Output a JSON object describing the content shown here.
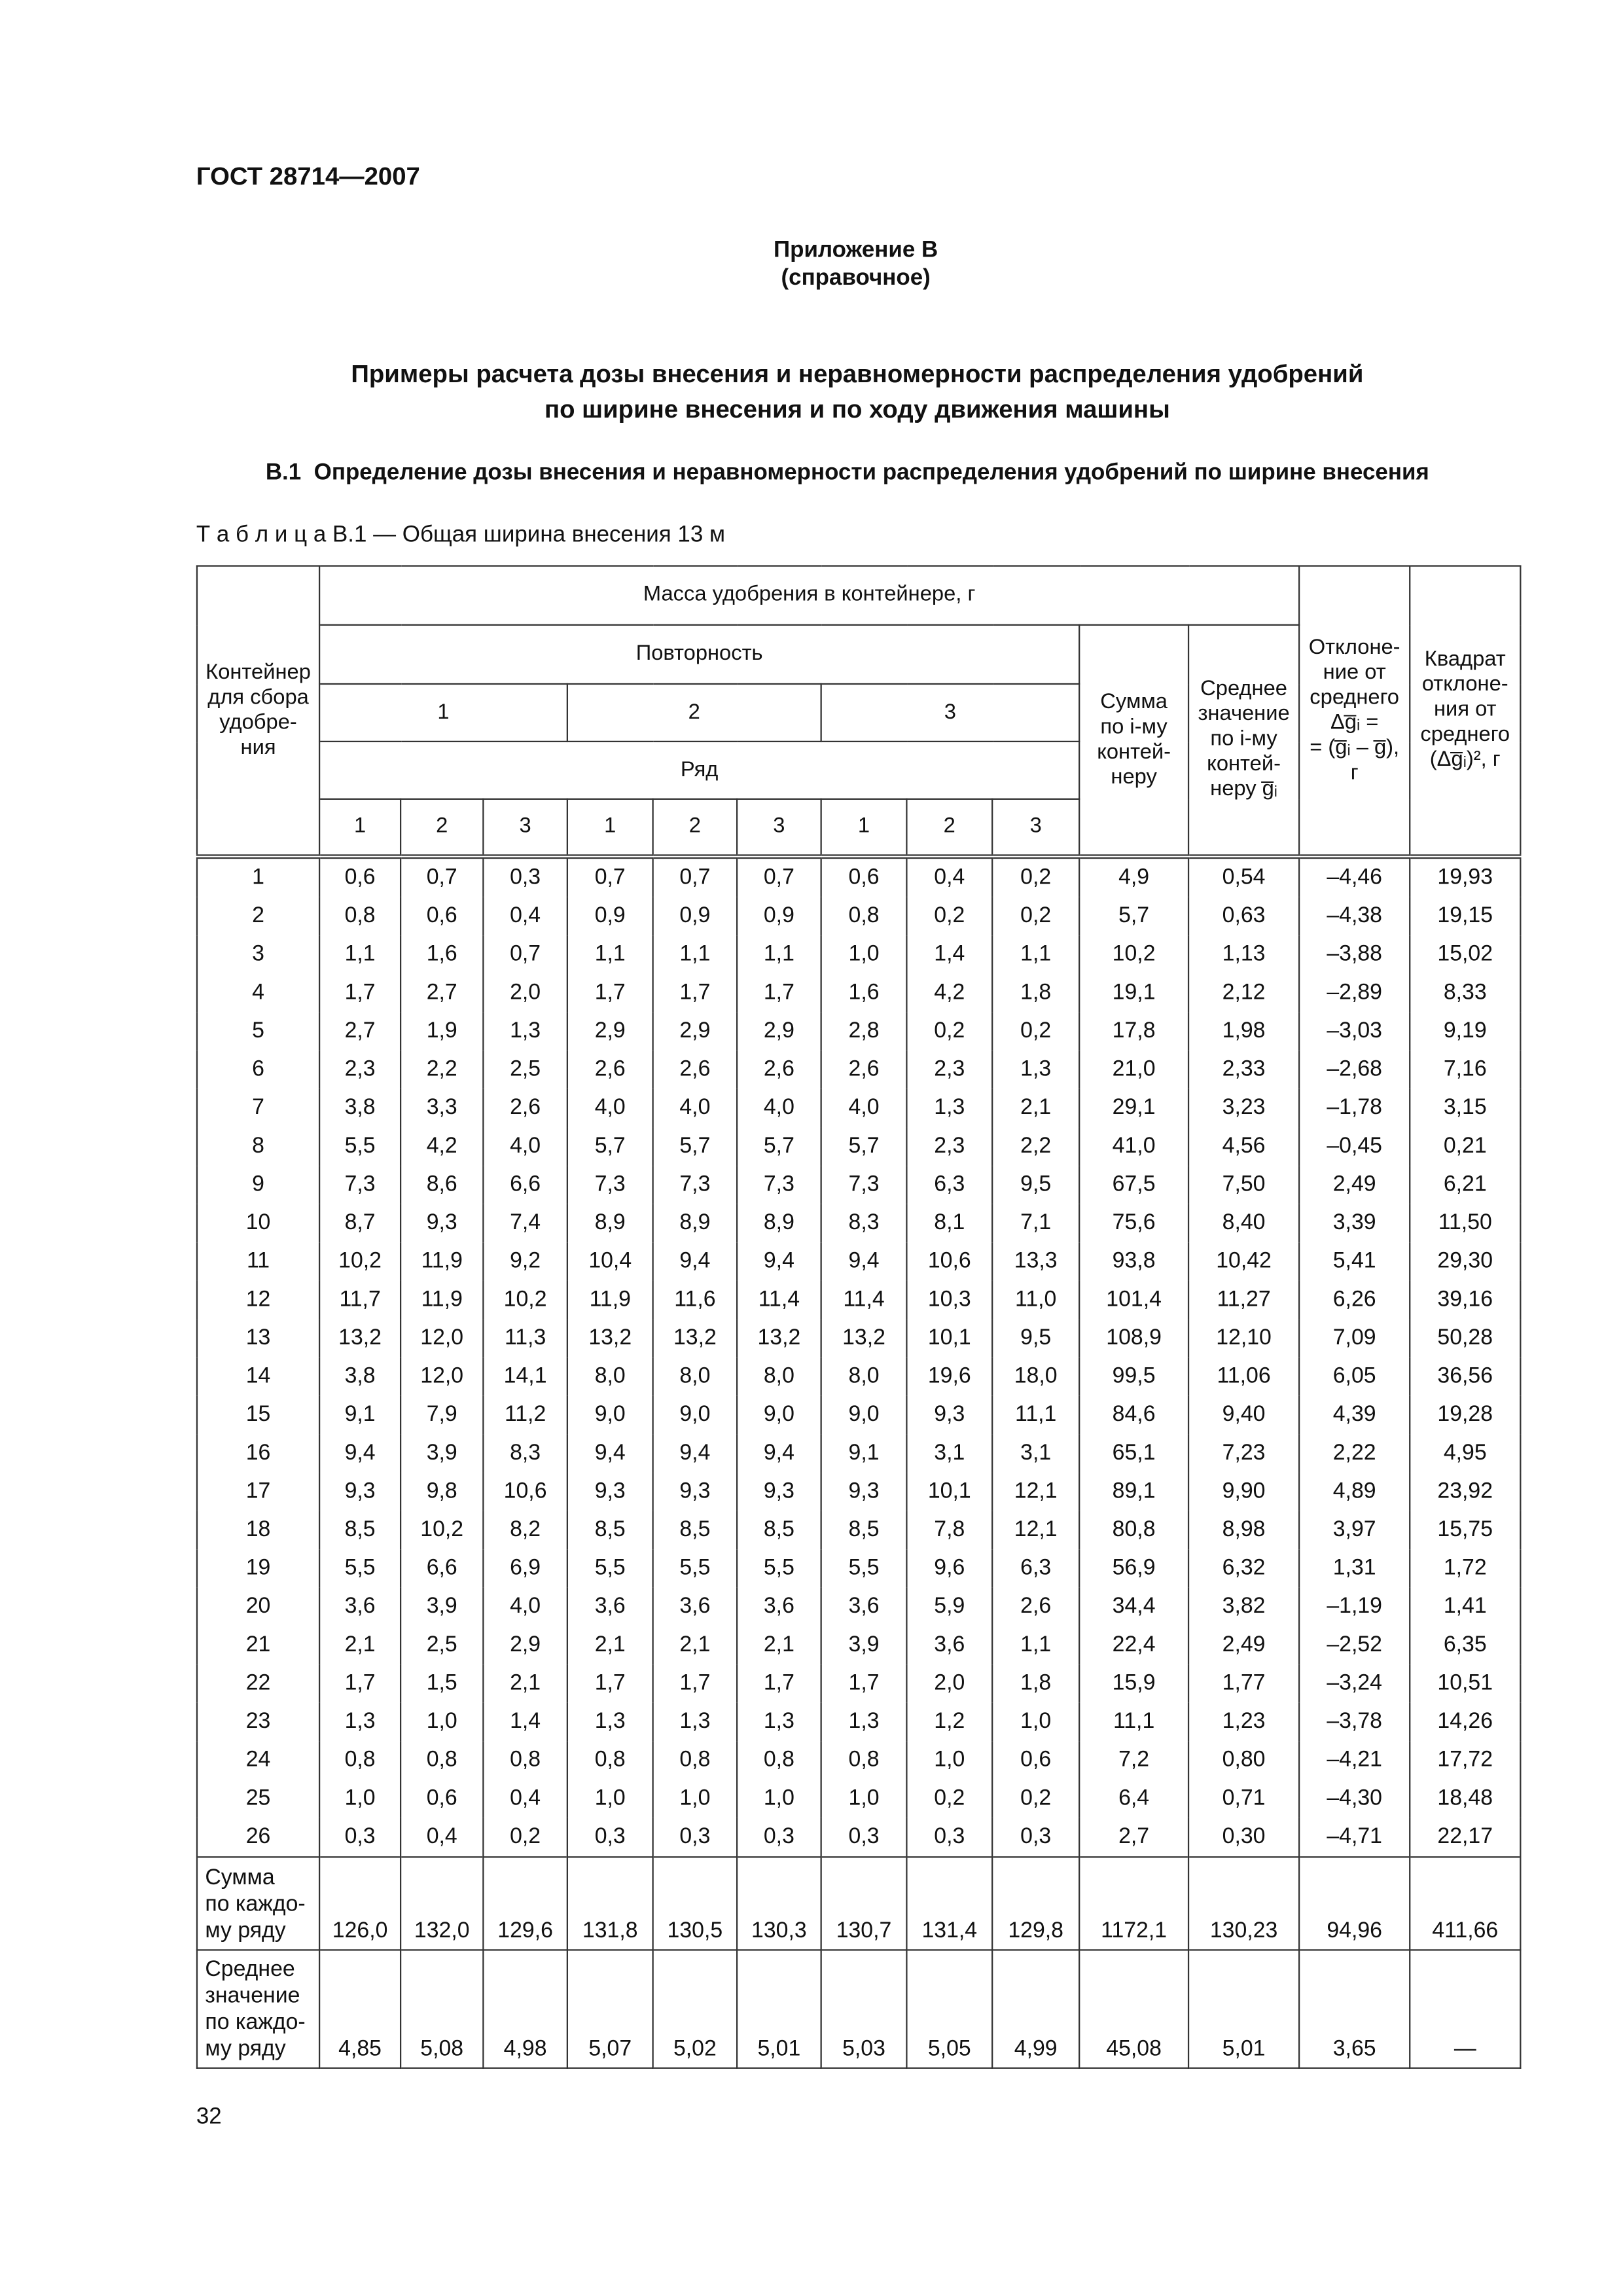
{
  "header": {
    "standard": "ГОСТ 28714—2007"
  },
  "appendix": {
    "label": "Приложение В",
    "status": "(справочное)"
  },
  "title": [
    "Примеры расчета дозы внесения и неравномерности распределения удобрений",
    "по ширине внесения и по ходу движения машины"
  ],
  "section": {
    "number": "В.1",
    "title": "Определение дозы внесения и неравномерности распределения удобрений по ширине внесения"
  },
  "table": {
    "caption": "Т а б л и ц а  В.1 — Общая ширина внесения 13 м",
    "headers": {
      "container": [
        "Контейнер",
        "для сбора",
        "удобре-",
        "ния"
      ],
      "mass": "Масса удобрения в контейнере, г",
      "repetition": "Повторность",
      "repetitions": [
        "1",
        "2",
        "3"
      ],
      "row": "Ряд",
      "row_numbers": [
        "1",
        "2",
        "3",
        "1",
        "2",
        "3",
        "1",
        "2",
        "3"
      ],
      "sum": [
        "Сумма",
        "по i-му",
        "контей-",
        "неру"
      ],
      "mean": [
        "Среднее",
        "значение",
        "по i-му",
        "контей-",
        "неру g̅ᵢ"
      ],
      "deviation": [
        "Отклоне-",
        "ние от",
        "среднего",
        "Δg̅ᵢ =",
        "= (g̅ᵢ – g̅),",
        "г"
      ],
      "square": [
        "Квадрат",
        "отклоне-",
        "ния от",
        "среднего",
        "(Δg̅ᵢ)², г"
      ]
    },
    "rows": [
      [
        "1",
        "0,6",
        "0,7",
        "0,3",
        "0,7",
        "0,7",
        "0,7",
        "0,6",
        "0,4",
        "0,2",
        "4,9",
        "0,54",
        "–4,46",
        "19,93"
      ],
      [
        "2",
        "0,8",
        "0,6",
        "0,4",
        "0,9",
        "0,9",
        "0,9",
        "0,8",
        "0,2",
        "0,2",
        "5,7",
        "0,63",
        "–4,38",
        "19,15"
      ],
      [
        "3",
        "1,1",
        "1,6",
        "0,7",
        "1,1",
        "1,1",
        "1,1",
        "1,0",
        "1,4",
        "1,1",
        "10,2",
        "1,13",
        "–3,88",
        "15,02"
      ],
      [
        "4",
        "1,7",
        "2,7",
        "2,0",
        "1,7",
        "1,7",
        "1,7",
        "1,6",
        "4,2",
        "1,8",
        "19,1",
        "2,12",
        "–2,89",
        "8,33"
      ],
      [
        "5",
        "2,7",
        "1,9",
        "1,3",
        "2,9",
        "2,9",
        "2,9",
        "2,8",
        "0,2",
        "0,2",
        "17,8",
        "1,98",
        "–3,03",
        "9,19"
      ],
      [
        "6",
        "2,3",
        "2,2",
        "2,5",
        "2,6",
        "2,6",
        "2,6",
        "2,6",
        "2,3",
        "1,3",
        "21,0",
        "2,33",
        "–2,68",
        "7,16"
      ],
      [
        "7",
        "3,8",
        "3,3",
        "2,6",
        "4,0",
        "4,0",
        "4,0",
        "4,0",
        "1,3",
        "2,1",
        "29,1",
        "3,23",
        "–1,78",
        "3,15"
      ],
      [
        "8",
        "5,5",
        "4,2",
        "4,0",
        "5,7",
        "5,7",
        "5,7",
        "5,7",
        "2,3",
        "2,2",
        "41,0",
        "4,56",
        "–0,45",
        "0,21"
      ],
      [
        "9",
        "7,3",
        "8,6",
        "6,6",
        "7,3",
        "7,3",
        "7,3",
        "7,3",
        "6,3",
        "9,5",
        "67,5",
        "7,50",
        "2,49",
        "6,21"
      ],
      [
        "10",
        "8,7",
        "9,3",
        "7,4",
        "8,9",
        "8,9",
        "8,9",
        "8,3",
        "8,1",
        "7,1",
        "75,6",
        "8,40",
        "3,39",
        "11,50"
      ],
      [
        "11",
        "10,2",
        "11,9",
        "9,2",
        "10,4",
        "9,4",
        "9,4",
        "9,4",
        "10,6",
        "13,3",
        "93,8",
        "10,42",
        "5,41",
        "29,30"
      ],
      [
        "12",
        "11,7",
        "11,9",
        "10,2",
        "11,9",
        "11,6",
        "11,4",
        "11,4",
        "10,3",
        "11,0",
        "101,4",
        "11,27",
        "6,26",
        "39,16"
      ],
      [
        "13",
        "13,2",
        "12,0",
        "11,3",
        "13,2",
        "13,2",
        "13,2",
        "13,2",
        "10,1",
        "9,5",
        "108,9",
        "12,10",
        "7,09",
        "50,28"
      ],
      [
        "14",
        "3,8",
        "12,0",
        "14,1",
        "8,0",
        "8,0",
        "8,0",
        "8,0",
        "19,6",
        "18,0",
        "99,5",
        "11,06",
        "6,05",
        "36,56"
      ],
      [
        "15",
        "9,1",
        "7,9",
        "11,2",
        "9,0",
        "9,0",
        "9,0",
        "9,0",
        "9,3",
        "11,1",
        "84,6",
        "9,40",
        "4,39",
        "19,28"
      ],
      [
        "16",
        "9,4",
        "3,9",
        "8,3",
        "9,4",
        "9,4",
        "9,4",
        "9,1",
        "3,1",
        "3,1",
        "65,1",
        "7,23",
        "2,22",
        "4,95"
      ],
      [
        "17",
        "9,3",
        "9,8",
        "10,6",
        "9,3",
        "9,3",
        "9,3",
        "9,3",
        "10,1",
        "12,1",
        "89,1",
        "9,90",
        "4,89",
        "23,92"
      ],
      [
        "18",
        "8,5",
        "10,2",
        "8,2",
        "8,5",
        "8,5",
        "8,5",
        "8,5",
        "7,8",
        "12,1",
        "80,8",
        "8,98",
        "3,97",
        "15,75"
      ],
      [
        "19",
        "5,5",
        "6,6",
        "6,9",
        "5,5",
        "5,5",
        "5,5",
        "5,5",
        "9,6",
        "6,3",
        "56,9",
        "6,32",
        "1,31",
        "1,72"
      ],
      [
        "20",
        "3,6",
        "3,9",
        "4,0",
        "3,6",
        "3,6",
        "3,6",
        "3,6",
        "5,9",
        "2,6",
        "34,4",
        "3,82",
        "–1,19",
        "1,41"
      ],
      [
        "21",
        "2,1",
        "2,5",
        "2,9",
        "2,1",
        "2,1",
        "2,1",
        "3,9",
        "3,6",
        "1,1",
        "22,4",
        "2,49",
        "–2,52",
        "6,35"
      ],
      [
        "22",
        "1,7",
        "1,5",
        "2,1",
        "1,7",
        "1,7",
        "1,7",
        "1,7",
        "2,0",
        "1,8",
        "15,9",
        "1,77",
        "–3,24",
        "10,51"
      ],
      [
        "23",
        "1,3",
        "1,0",
        "1,4",
        "1,3",
        "1,3",
        "1,3",
        "1,3",
        "1,2",
        "1,0",
        "11,1",
        "1,23",
        "–3,78",
        "14,26"
      ],
      [
        "24",
        "0,8",
        "0,8",
        "0,8",
        "0,8",
        "0,8",
        "0,8",
        "0,8",
        "1,0",
        "0,6",
        "7,2",
        "0,80",
        "–4,21",
        "17,72"
      ],
      [
        "25",
        "1,0",
        "0,6",
        "0,4",
        "1,0",
        "1,0",
        "1,0",
        "1,0",
        "0,2",
        "0,2",
        "6,4",
        "0,71",
        "–4,30",
        "18,48"
      ],
      [
        "26",
        "0,3",
        "0,4",
        "0,2",
        "0,3",
        "0,3",
        "0,3",
        "0,3",
        "0,3",
        "0,3",
        "2,7",
        "0,30",
        "–4,71",
        "22,17"
      ]
    ],
    "summary_rows": [
      {
        "label": [
          "Сумма",
          "по каждо-",
          "му ряду"
        ],
        "values": [
          "126,0",
          "132,0",
          "129,6",
          "131,8",
          "130,5",
          "130,3",
          "130,7",
          "131,4",
          "129,8",
          "1172,1",
          "130,23",
          "94,96",
          "411,66"
        ]
      },
      {
        "label": [
          "Среднее",
          "значение",
          "по каждо-",
          "му ряду"
        ],
        "values": [
          "4,85",
          "5,08",
          "4,98",
          "5,07",
          "5,02",
          "5,01",
          "5,03",
          "5,05",
          "4,99",
          "45,08",
          "5,01",
          "3,65",
          "—"
        ]
      }
    ]
  },
  "page_number": "32"
}
